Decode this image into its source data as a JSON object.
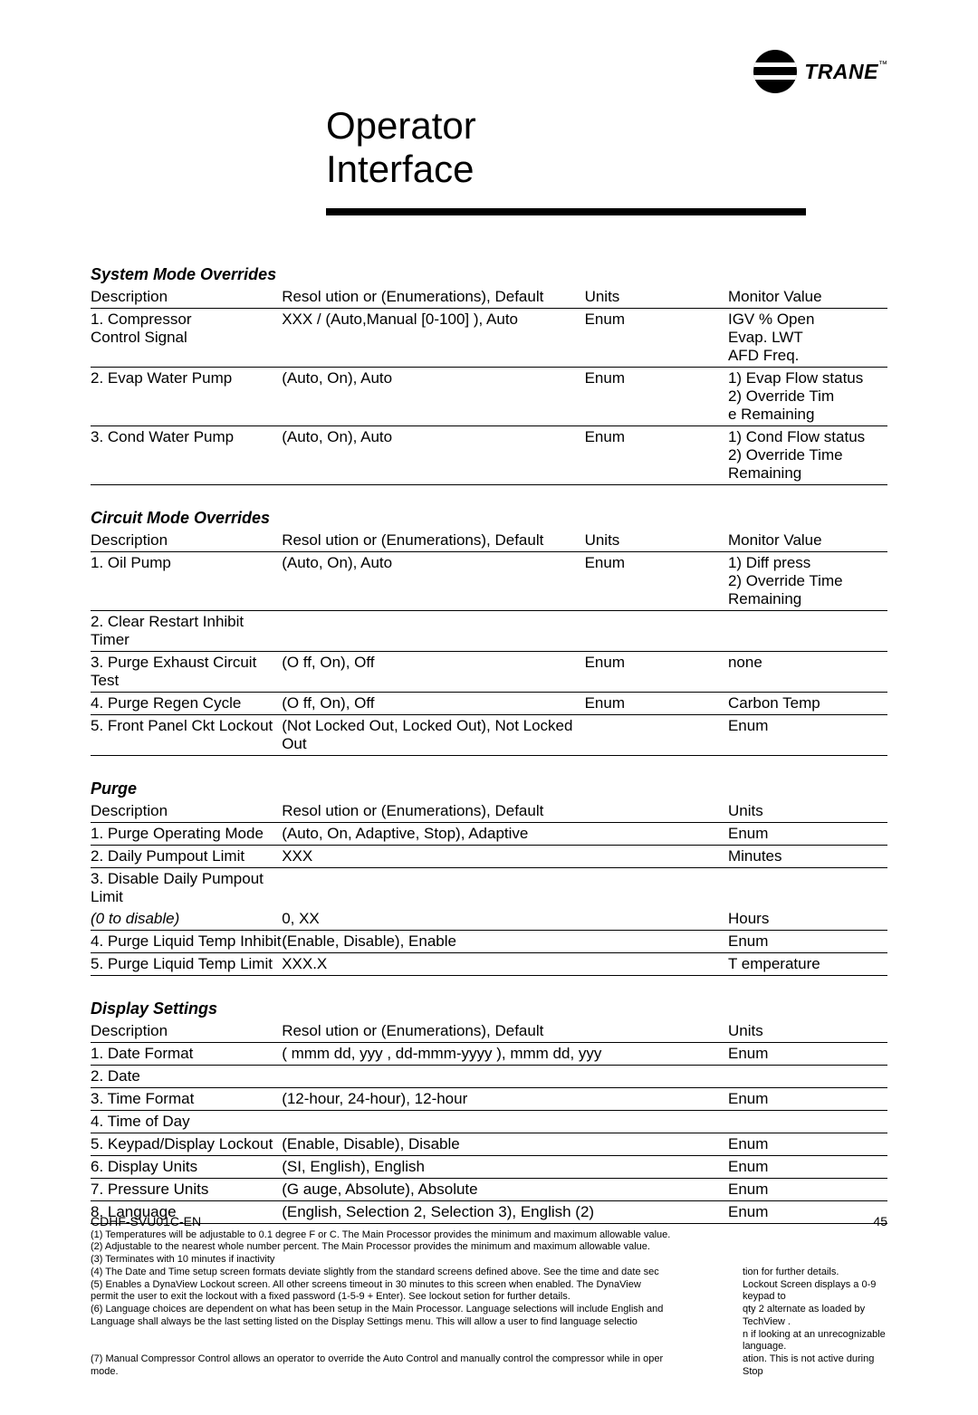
{
  "brand": {
    "name": "TRANE",
    "tm": "™"
  },
  "title_line1": "Operator",
  "title_line2": "Interface",
  "sections": {
    "system_mode": {
      "title": "System Mode Overrides",
      "headers": {
        "desc": "Description",
        "resol": "Resol   ution or (Enumerations),    Default",
        "units": "Units",
        "monitor": "Monitor Value"
      },
      "rows": [
        {
          "desc": "1. Compressor\nControl Signal",
          "resol": "XXX / (Auto,Manual [0-100] ), Auto",
          "units": "Enum",
          "monitor": "IGV % Open\nEvap. LWT\nAFD Freq."
        },
        {
          "desc": "2. Evap Water Pump",
          "resol": "(Auto, On), Auto",
          "units": "Enum",
          "monitor": "1)  Evap Flow status\n2) Override Tim\ne Remaining"
        },
        {
          "desc": "3. Cond Water Pump",
          "resol": "(Auto, On), Auto",
          "units": "Enum",
          "monitor": "1)  Cond Flow status\n2) Override Time Remaining"
        }
      ]
    },
    "circuit_mode": {
      "title": "Circuit Mode Overrides",
      "headers": {
        "desc": "Description",
        "resol": "Resol   ution or (Enumerations),    Default",
        "units": "Units",
        "monitor": "Monitor Value"
      },
      "rows": [
        {
          "desc": "1. Oil Pump",
          "resol": "(Auto, On), Auto",
          "units": "Enum",
          "monitor": "1)  Diff press\n2) Override Time Remaining"
        },
        {
          "desc": "2. Clear Restart Inhibit Timer",
          "resol": "",
          "units": "",
          "monitor": ""
        },
        {
          "desc": "3. Purge Exhaust Circuit Test",
          "resol": "(O   ff, On), Off",
          "units": "Enum",
          "monitor": "none"
        },
        {
          "desc": "4. Purge Regen Cycle",
          "resol": "(O ff, On), Off",
          "units": "Enum",
          "monitor": "Carbon Temp"
        },
        {
          "desc": "5. Front Panel Ckt Lockout",
          "resol": "(Not Locked Out, Locked Out), Not Locked Out",
          "units": "",
          "monitor": "Enum"
        }
      ]
    },
    "purge": {
      "title": "Purge",
      "headers": {
        "desc": "Description",
        "resol": "Resol  ution or (Enumerations),    Default",
        "units": "Units"
      },
      "rows": [
        {
          "desc": "1. Purge Operating Mode",
          "resol": "(Auto, On, Adaptive, Stop), Adaptive",
          "units": "Enum"
        },
        {
          "desc": "2. Daily Pumpout Limit",
          "resol": "XXX",
          "units": "Minutes"
        },
        {
          "desc": "3. Disable Daily Pumpout Limit",
          "resol": "",
          "units": "",
          "noborder": true
        },
        {
          "desc": "    (0 to disable)",
          "resol": "0, XX",
          "units": "Hours",
          "italic_desc": true
        },
        {
          "desc": "4. Purge Liquid Temp Inhibit",
          "resol": "(Enable, Disable), Enable",
          "units": "Enum"
        },
        {
          "desc": "5. Purge Liquid Temp Limit",
          "resol": "XXX.X",
          "units": "T emperature"
        }
      ]
    },
    "display": {
      "title": "Display Settings",
      "headers": {
        "desc": "Description",
        "resol": "Resol   ution or (Enumerations),    Default",
        "units": "Units"
      },
      "rows": [
        {
          "desc": "1. Date Format",
          "resol": "( mmm dd, yyy ,  dd-mmm-yyyy ),  mmm dd, yyy",
          "units": "Enum"
        },
        {
          "desc": "2. Date",
          "resol": "",
          "units": ""
        },
        {
          "desc": "3. Time Format",
          "resol": "(12-hour, 24-hour), 12-hour",
          "units": "Enum"
        },
        {
          "desc": "4. Time of Day",
          "resol": "",
          "units": ""
        },
        {
          "desc": "5. Keypad/Display Lockout",
          "resol": "(Enable, Disable), Disable",
          "units": "Enum"
        },
        {
          "desc": "6. Display Units",
          "resol": "(SI, English),  English",
          "units": "Enum"
        },
        {
          "desc": "7. Pressure Units",
          "resol": "(G  auge, Absolute), Absolute",
          "units": "Enum"
        },
        {
          "desc": "8. Language",
          "resol": "(English, Selection 2, Selection 3), English (2)",
          "units": "Enum"
        }
      ]
    }
  },
  "footnotes": [
    {
      "left": "(1) Temperatures will be adjustable to 0.1 degree F or C.  The Main Processor provides the minimum and maximum allowable value.",
      "right": ""
    },
    {
      "left": "(2) Adjustable to the nearest whole number percent.  The Main Processor provides the minimum and maximum allowable value.",
      "right": ""
    },
    {
      "left": "(3) Terminates with 10 minutes if inactivity",
      "right": ""
    },
    {
      "left": "(4) The Date and Time setup screen formats deviate slightly from the standard screens defined above.  See the time and date sec",
      "right": "tion for further details."
    },
    {
      "left": "(5) Enables a DynaView    Lockout screen.  All other screens timeout in 30 minutes to this screen when enabled. The DynaView\n      permit the user to exit the lockout with a fixed password (1-5-9 + Enter).  See lockout setion for further details.",
      "right": "Lockout Screen displays a 0-9 keypad to"
    },
    {
      "left": "(6) Language choices are dependent on what has been setup in the Main Processor.  Language selections will include English and\n      Language shall always be the last setting listed on the Display Settings menu. This will allow a user to find language selectio",
      "right": "qty 2 alternate as loaded by TechView      .\nn if looking at an unrecognizable language."
    },
    {
      "left": "(7) Manual Compressor Control allows an operator to override the Auto Control and manually control the compressor while in oper\n      mode.",
      "right": "ation. This is not active during Stop"
    }
  ],
  "footer": {
    "doc": "CDHF-SVU01C-EN",
    "page": "45"
  }
}
